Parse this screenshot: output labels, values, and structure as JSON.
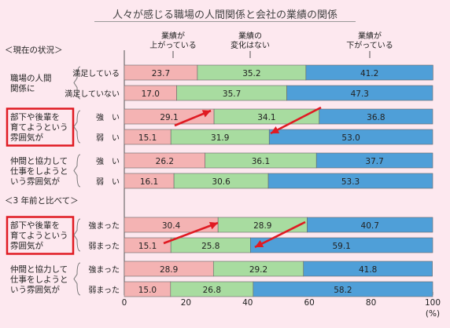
{
  "title": "人々が感じる職場の人間関係と会社の業績の関係",
  "chart_data": {
    "type": "bar",
    "stacked": "horizontal-100",
    "legend": [
      "業績が上がっている",
      "業績の変化はない",
      "業績が下がっている"
    ],
    "legend_lines": [
      [
        "業績が",
        "上がっている"
      ],
      [
        "業績の",
        "変化はない"
      ],
      [
        "業績が",
        "下がっている"
      ]
    ],
    "colors": [
      "#f4b3b3",
      "#a8dca0",
      "#4f9fd8"
    ],
    "x_ticks": [
      "0",
      "20",
      "40",
      "60",
      "80",
      "100"
    ],
    "xlim": [
      0,
      100
    ],
    "x_unit": "(%)",
    "section_labels": [
      "＜現在の状況＞",
      "＜3 年前と比べて＞"
    ],
    "groups": [
      {
        "label_lines": [
          "職場の人間",
          "関係に"
        ],
        "highlight": false,
        "rows": [
          {
            "label": "満足している",
            "values": [
              23.7,
              35.2,
              41.2
            ]
          },
          {
            "label": "満足していない",
            "values": [
              17.0,
              35.7,
              47.3
            ]
          }
        ]
      },
      {
        "label_lines": [
          "部下や後輩を",
          "育てようという",
          "雰囲気が"
        ],
        "highlight": true,
        "rows": [
          {
            "label": "強　い",
            "values": [
              29.1,
              34.1,
              36.8
            ]
          },
          {
            "label": "弱　い",
            "values": [
              15.1,
              31.9,
              53.0
            ]
          }
        ]
      },
      {
        "label_lines": [
          "仲間と協力して",
          "仕事をしようと",
          "いう雰囲気が"
        ],
        "highlight": false,
        "rows": [
          {
            "label": "強　い",
            "values": [
              26.2,
              36.1,
              37.7
            ]
          },
          {
            "label": "弱　い",
            "values": [
              16.1,
              30.6,
              53.3
            ]
          }
        ]
      },
      {
        "label_lines": [
          "部下や後輩を",
          "育てようという",
          "雰囲気が"
        ],
        "highlight": true,
        "rows": [
          {
            "label": "強まった",
            "values": [
              30.4,
              28.9,
              40.7
            ]
          },
          {
            "label": "弱まった",
            "values": [
              15.1,
              25.8,
              59.1
            ]
          }
        ]
      },
      {
        "label_lines": [
          "仲間と協力して",
          "仕事をしようと",
          "いう雰囲気が"
        ],
        "highlight": false,
        "rows": [
          {
            "label": "強まった",
            "values": [
              28.9,
              29.2,
              41.8
            ]
          },
          {
            "label": "弱まった",
            "values": [
              15.0,
              26.8,
              58.2
            ]
          }
        ]
      }
    ]
  }
}
